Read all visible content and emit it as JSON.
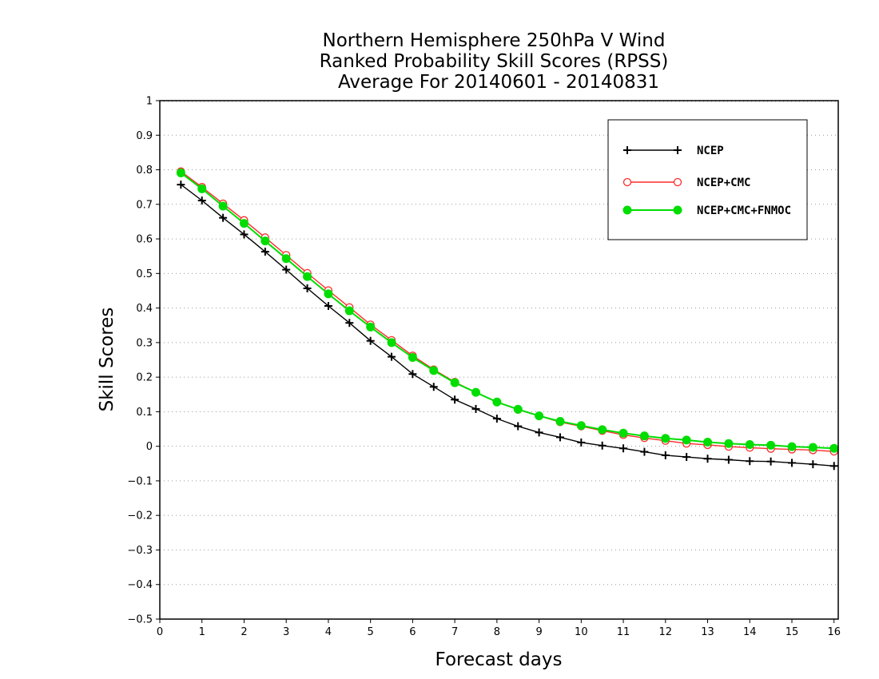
{
  "chart_data": {
    "type": "line",
    "title_lines": [
      "Northern Hemisphere 250hPa V Wind",
      "Ranked Probability Skill Scores (RPSS)",
      "Average For 20140601 - 20140831"
    ],
    "xlabel": "Forecast days",
    "ylabel": "Skill Scores",
    "xlim": [
      0,
      16.1
    ],
    "ylim": [
      -0.5,
      1.0
    ],
    "x_ticks": [
      0,
      1,
      2,
      3,
      4,
      5,
      6,
      7,
      8,
      9,
      10,
      11,
      12,
      13,
      14,
      15,
      16
    ],
    "y_ticks": [
      1,
      0.9,
      0.8,
      0.7,
      0.6,
      0.5,
      0.4,
      0.3,
      0.2,
      0.1,
      0,
      -0.1,
      -0.2,
      -0.3,
      -0.4,
      -0.5
    ],
    "y_tick_labels": [
      "1",
      "0.9",
      "0.8",
      "0.7",
      "0.6",
      "0.5",
      "0.4",
      "0.3",
      "0.2",
      "0.1",
      "0",
      "−0.1",
      "−0.2",
      "−0.3",
      "−0.4",
      "−0.5"
    ],
    "grid": true,
    "legend_position": "top-right",
    "x": [
      0.5,
      1.0,
      1.5,
      2.0,
      2.5,
      3.0,
      3.5,
      4.0,
      4.5,
      5.0,
      5.5,
      6.0,
      6.5,
      7.0,
      7.5,
      8.0,
      8.5,
      9.0,
      9.5,
      10.0,
      10.5,
      11.0,
      11.5,
      12.0,
      12.5,
      13.0,
      13.5,
      14.0,
      14.5,
      15.0,
      15.5,
      16.0
    ],
    "series": [
      {
        "name": "NCEP",
        "color": "#000000",
        "marker": "plus",
        "values": [
          0.757,
          0.711,
          0.661,
          0.613,
          0.563,
          0.511,
          0.457,
          0.406,
          0.357,
          0.305,
          0.259,
          0.209,
          0.172,
          0.135,
          0.108,
          0.08,
          0.058,
          0.04,
          0.026,
          0.011,
          0.002,
          -0.006,
          -0.016,
          -0.026,
          -0.031,
          -0.036,
          -0.039,
          -0.043,
          -0.044,
          -0.048,
          -0.052,
          -0.057
        ]
      },
      {
        "name": "NCEP+CMC",
        "color": "#ff2a2a",
        "marker": "open-circle",
        "values": [
          0.795,
          0.75,
          0.702,
          0.654,
          0.604,
          0.553,
          0.501,
          0.451,
          0.402,
          0.352,
          0.307,
          0.262,
          0.222,
          0.186,
          0.156,
          0.128,
          0.106,
          0.088,
          0.07,
          0.058,
          0.045,
          0.033,
          0.024,
          0.016,
          0.008,
          0.004,
          -0.001,
          -0.004,
          -0.007,
          -0.009,
          -0.011,
          -0.015
        ]
      },
      {
        "name": "NCEP+CMC+FNMOC",
        "color": "#00dd00",
        "marker": "filled-circle",
        "values": [
          0.791,
          0.745,
          0.695,
          0.645,
          0.594,
          0.543,
          0.491,
          0.441,
          0.392,
          0.345,
          0.3,
          0.257,
          0.219,
          0.184,
          0.156,
          0.128,
          0.107,
          0.088,
          0.072,
          0.06,
          0.048,
          0.038,
          0.03,
          0.023,
          0.018,
          0.012,
          0.008,
          0.005,
          0.003,
          -0.001,
          -0.003,
          -0.006
        ]
      }
    ]
  }
}
